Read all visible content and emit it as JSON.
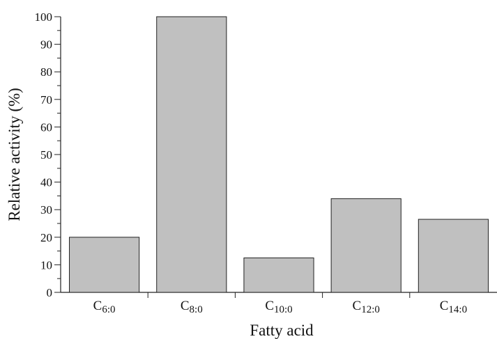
{
  "chart_data": {
    "type": "bar",
    "categories": [
      {
        "base": "C",
        "sub": "6:0"
      },
      {
        "base": "C",
        "sub": "8:0"
      },
      {
        "base": "C",
        "sub": "10:0"
      },
      {
        "base": "C",
        "sub": "12:0"
      },
      {
        "base": "C",
        "sub": "14:0"
      }
    ],
    "values": [
      20,
      100,
      12.5,
      34,
      26.5
    ],
    "xlabel": "Fatty acid",
    "ylabel": "Relative activity (%)",
    "ylim": [
      0,
      100
    ],
    "yticks": [
      "0",
      "10",
      "20",
      "30",
      "40",
      "50",
      "60",
      "70",
      "80",
      "90",
      "100"
    ],
    "grid": false,
    "bar_color": "#c0c0c0",
    "bar_stroke": "#222222"
  }
}
